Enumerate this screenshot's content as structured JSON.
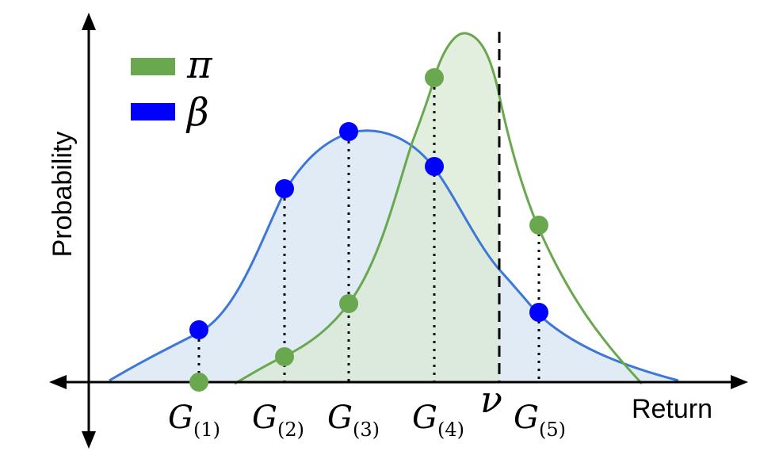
{
  "colors": {
    "pi": "#6aa84f",
    "pi_fill": "#d9ead3",
    "beta_line": "#3d78d8",
    "beta_fill": "#dbe7f3",
    "beta_dot": "#0000ff",
    "axis": "#000000"
  },
  "axes": {
    "ylabel": "Probability",
    "xlabel": "Return"
  },
  "legend": {
    "pi_symbol": "π",
    "beta_symbol": "β"
  },
  "threshold": {
    "symbol": "ν"
  },
  "samples": [
    {
      "base": "G",
      "index": "(1)"
    },
    {
      "base": "G",
      "index": "(2)"
    },
    {
      "base": "G",
      "index": "(3)"
    },
    {
      "base": "G",
      "index": "(4)"
    },
    {
      "base": "G",
      "index": "(5)"
    }
  ]
}
